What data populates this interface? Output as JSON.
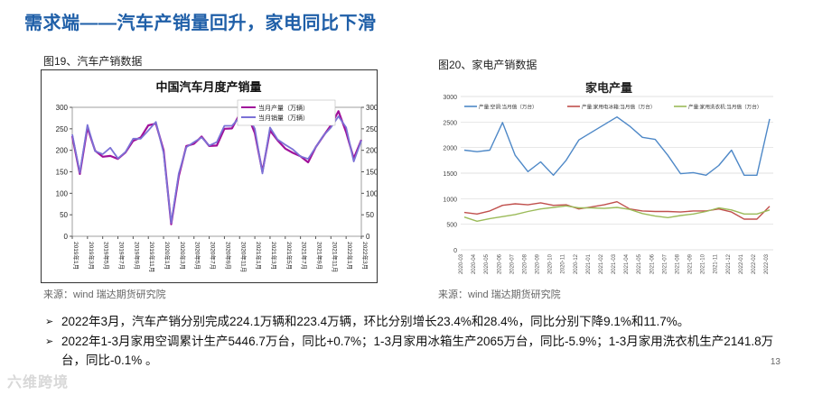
{
  "slide": {
    "title": "需求端——汽车产销量回升，家电同比下滑",
    "page_number": "13",
    "logo_text": "六维跨境"
  },
  "figures": {
    "left_caption": "图19、汽车产销数据",
    "right_caption": "图20、家电产销数据",
    "left_source": "来源：wind  瑞达期货研究院",
    "right_source": "来源：wind  瑞达期货研究院"
  },
  "bullets": [
    "2022年3月，汽车产销分别完成224.1万辆和223.4万辆，环比分别增长23.4%和28.4%，同比分别下降9.1%和11.7%。",
    "2022年1-3月家用空调累计生产5446.7万台，同比+0.7%；1-3月家用冰箱生产2065万台，同比-5.9%；1-3月家用洗衣机生产2141.8万台，同比-0.1% 。"
  ],
  "colors": {
    "title": "#1f5fa8",
    "car_prod": "#a0109a",
    "car_sales": "#7b72d6",
    "ac": "#4e88c7",
    "fridge": "#c0504d",
    "washer": "#9bbb59"
  },
  "chart_data": [
    {
      "type": "line",
      "title": "中国汽车月度产销量",
      "categories": [
        "2019年1月",
        "2019年2月",
        "2019年3月",
        "2019年4月",
        "2019年5月",
        "2019年6月",
        "2019年7月",
        "2019年8月",
        "2019年9月",
        "2019年10月",
        "2019年11月",
        "2019年12月",
        "2020年1月",
        "2020年2月",
        "2020年3月",
        "2020年4月",
        "2020年5月",
        "2020年6月",
        "2020年7月",
        "2020年8月",
        "2020年9月",
        "2020年10月",
        "2020年11月",
        "2020年12月",
        "2021年1月",
        "2021年2月",
        "2021年3月",
        "2021年4月",
        "2021年5月",
        "2021年6月",
        "2021年7月",
        "2021年8月",
        "2021年9月",
        "2021年10月",
        "2021年11月",
        "2021年12月",
        "2022年1月",
        "2022年2月",
        "2022年3月"
      ],
      "tick_labels": [
        "2019年1月",
        "2019年3月",
        "2019年5月",
        "2019年7月",
        "2019年9月",
        "2019年11月",
        "2020年1月",
        "2020年3月",
        "2020年5月",
        "2020年7月",
        "2020年9月",
        "2020年11月",
        "2021年1月",
        "2021年3月",
        "2021年5月",
        "2021年7月",
        "2021年9月",
        "2021年11月",
        "2022年1月",
        "2022年3月"
      ],
      "series": [
        {
          "name": "当月产量（万辆）",
          "values": [
            233,
            145,
            253,
            199,
            185,
            187,
            180,
            195,
            222,
            230,
            258,
            262,
            200,
            28,
            140,
            210,
            215,
            232,
            210,
            211,
            250,
            251,
            284,
            284,
            240,
            150,
            246,
            223,
            204,
            194,
            186,
            172,
            207,
            233,
            258,
            291,
            242,
            181,
            224
          ]
        },
        {
          "name": "当月销量（万辆）",
          "values": [
            237,
            148,
            259,
            198,
            191,
            206,
            181,
            196,
            227,
            227,
            246,
            266,
            194,
            31,
            146,
            207,
            219,
            230,
            211,
            219,
            257,
            257,
            277,
            283,
            250,
            146,
            253,
            225,
            213,
            202,
            186,
            180,
            207,
            234,
            253,
            279,
            253,
            174,
            223
          ]
        }
      ],
      "ylim": [
        0,
        300
      ],
      "yticks": [
        0,
        50,
        100,
        150,
        200,
        250,
        300
      ],
      "right_ylim": [
        0,
        300
      ],
      "right_yticks": [
        0,
        50,
        100,
        150,
        200,
        250,
        300
      ],
      "legend": "top-right"
    },
    {
      "type": "line",
      "title": "家电产量",
      "categories": [
        "2020-03",
        "2020-04",
        "2020-05",
        "2020-06",
        "2020-07",
        "2020-08",
        "2020-09",
        "2020-10",
        "2020-11",
        "2020-12",
        "2021-01",
        "2021-02",
        "2021-03",
        "2021-04",
        "2021-05",
        "2021-06",
        "2021-07",
        "2021-08",
        "2021-09",
        "2021-10",
        "2021-11",
        "2021-12",
        "2022-01",
        "2022-02",
        "2022-03"
      ],
      "series": [
        {
          "name": "产量:空调:当月值（万台）",
          "values": [
            1950,
            1920,
            1950,
            2490,
            1850,
            1530,
            1720,
            1460,
            1750,
            2150,
            2300,
            2450,
            2600,
            2420,
            2200,
            2160,
            1850,
            1490,
            1510,
            1460,
            1650,
            1950,
            1460,
            1460,
            2560
          ]
        },
        {
          "name": "产量:家用电冰箱:当月值（万台）",
          "values": [
            730,
            700,
            760,
            870,
            900,
            880,
            920,
            870,
            880,
            800,
            840,
            880,
            940,
            800,
            760,
            750,
            750,
            740,
            760,
            760,
            800,
            740,
            600,
            600,
            850
          ]
        },
        {
          "name": "产量:家用洗衣机:当月值（万台）",
          "values": [
            640,
            560,
            610,
            650,
            690,
            750,
            800,
            830,
            860,
            820,
            820,
            810,
            830,
            790,
            710,
            660,
            630,
            670,
            700,
            750,
            820,
            780,
            700,
            700,
            780
          ]
        }
      ],
      "ylim": [
        0,
        3000
      ],
      "yticks": [
        0,
        500,
        1000,
        1500,
        2000,
        2500,
        3000
      ],
      "legend": "top"
    }
  ]
}
